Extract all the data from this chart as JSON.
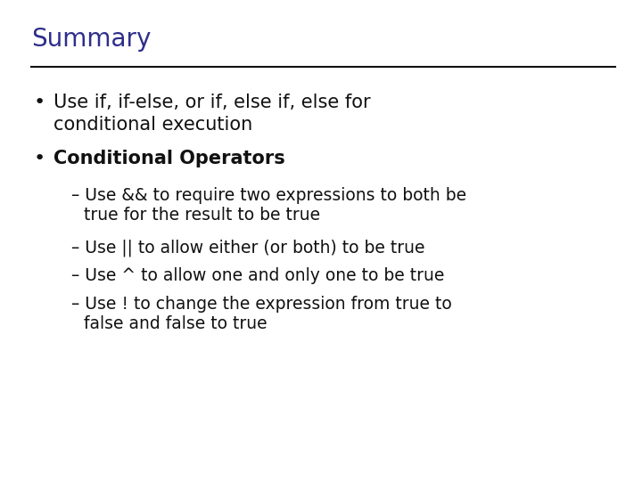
{
  "title": "Summary",
  "title_color": "#2e2e8b",
  "title_fontsize": 20,
  "background_color": "#ffffff",
  "line_color": "#111111",
  "bullet1_line1": "Use if, if-else, or if, else if, else for",
  "bullet1_line2": "conditional execution",
  "bullet2": "Conditional Operators",
  "sub1_line1": "– Use && to require two expressions to both be",
  "sub1_line2": "   true for the result to be true",
  "sub2": "– Use || to allow either (or both) to be true",
  "sub3": "– Use ^ to allow one and only one to be true",
  "sub4_line1": "– Use ! to change the expression from true to",
  "sub4_line2": "   false and false to true",
  "text_color": "#111111",
  "fontsize_bullet": 15,
  "fontsize_sub": 13.5
}
